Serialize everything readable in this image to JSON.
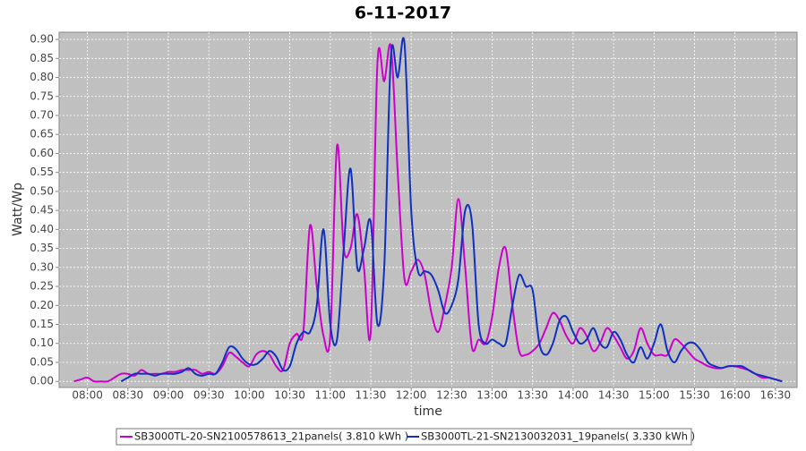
{
  "chart_data": {
    "type": "line",
    "title": "6-11-2017",
    "x_label": "time",
    "y_label": "Watt/Wp",
    "x": [
      "07:50",
      "07:55",
      "08:00",
      "08:05",
      "08:10",
      "08:15",
      "08:20",
      "08:25",
      "08:30",
      "08:35",
      "08:40",
      "08:45",
      "08:50",
      "08:55",
      "09:00",
      "09:05",
      "09:10",
      "09:15",
      "09:20",
      "09:25",
      "09:30",
      "09:35",
      "09:40",
      "09:45",
      "09:50",
      "09:55",
      "10:00",
      "10:05",
      "10:10",
      "10:15",
      "10:20",
      "10:25",
      "10:30",
      "10:35",
      "10:40",
      "10:45",
      "10:50",
      "10:55",
      "11:00",
      "11:05",
      "11:10",
      "11:15",
      "11:20",
      "11:25",
      "11:30",
      "11:35",
      "11:40",
      "11:45",
      "11:50",
      "11:55",
      "12:00",
      "12:05",
      "12:10",
      "12:15",
      "12:20",
      "12:25",
      "12:30",
      "12:35",
      "12:40",
      "12:45",
      "12:50",
      "12:55",
      "13:00",
      "13:05",
      "13:10",
      "13:15",
      "13:20",
      "13:25",
      "13:30",
      "13:35",
      "13:40",
      "13:45",
      "13:50",
      "13:55",
      "14:00",
      "14:05",
      "14:10",
      "14:15",
      "14:20",
      "14:25",
      "14:30",
      "14:35",
      "14:40",
      "14:45",
      "14:50",
      "14:55",
      "15:00",
      "15:05",
      "15:10",
      "15:15",
      "15:20",
      "15:25",
      "15:30",
      "15:35",
      "15:40",
      "15:45",
      "15:50",
      "15:55",
      "16:00",
      "16:05",
      "16:10",
      "16:15",
      "16:20",
      "16:25",
      "16:30",
      "16:35"
    ],
    "series": [
      {
        "name": "SB3000TL-20-SN2100578613_21panels( 3.810 kWh )",
        "color": "#cc00cc",
        "values": [
          0,
          0.005,
          0.01,
          0,
          0,
          0,
          0.01,
          0.02,
          0.02,
          0.015,
          0.03,
          0.02,
          0.02,
          0.02,
          0.025,
          0.025,
          0.03,
          0.03,
          0.03,
          0.02,
          0.025,
          0.02,
          0.04,
          0.075,
          0.065,
          0.05,
          0.04,
          0.07,
          0.08,
          0.07,
          0.04,
          0.03,
          0.1,
          0.125,
          0.13,
          0.41,
          0.25,
          0.12,
          0.12,
          0.62,
          0.35,
          0.35,
          0.44,
          0.3,
          0.13,
          0.84,
          0.79,
          0.88,
          0.55,
          0.27,
          0.29,
          0.32,
          0.28,
          0.18,
          0.13,
          0.2,
          0.3,
          0.48,
          0.3,
          0.09,
          0.11,
          0.1,
          0.17,
          0.3,
          0.35,
          0.2,
          0.08,
          0.07,
          0.08,
          0.1,
          0.14,
          0.18,
          0.16,
          0.12,
          0.1,
          0.14,
          0.12,
          0.08,
          0.1,
          0.14,
          0.12,
          0.09,
          0.06,
          0.08,
          0.14,
          0.1,
          0.07,
          0.07,
          0.07,
          0.11,
          0.1,
          0.08,
          0.06,
          0.05,
          0.04,
          0.035,
          0.035,
          0.04,
          0.04,
          0.035,
          0.03,
          0.02,
          0.01,
          0.01,
          0.005,
          0
        ]
      },
      {
        "name": "SB3000TL-21-SN2130032031_19panels( 3.330 kWh )",
        "color": "#1030c0",
        "values": [
          null,
          null,
          null,
          null,
          null,
          null,
          null,
          0,
          0.01,
          0.02,
          0.02,
          0.02,
          0.015,
          0.02,
          0.02,
          0.02,
          0.025,
          0.035,
          0.02,
          0.015,
          0.02,
          0.02,
          0.05,
          0.09,
          0.085,
          0.06,
          0.045,
          0.045,
          0.06,
          0.08,
          0.065,
          0.03,
          0.04,
          0.1,
          0.13,
          0.13,
          0.2,
          0.4,
          0.15,
          0.11,
          0.35,
          0.56,
          0.3,
          0.35,
          0.42,
          0.15,
          0.3,
          0.86,
          0.8,
          0.89,
          0.45,
          0.29,
          0.29,
          0.28,
          0.24,
          0.18,
          0.2,
          0.27,
          0.45,
          0.42,
          0.15,
          0.1,
          0.11,
          0.1,
          0.1,
          0.2,
          0.28,
          0.25,
          0.24,
          0.1,
          0.07,
          0.1,
          0.16,
          0.17,
          0.13,
          0.1,
          0.11,
          0.14,
          0.1,
          0.09,
          0.13,
          0.11,
          0.07,
          0.05,
          0.09,
          0.06,
          0.1,
          0.15,
          0.08,
          0.05,
          0.08,
          0.1,
          0.1,
          0.08,
          0.05,
          0.04,
          0.035,
          0.04,
          0.04,
          0.04,
          0.03,
          0.02,
          0.015,
          0.01,
          0.005,
          0
        ]
      }
    ],
    "xlim": [
      "07:39",
      "16:46"
    ],
    "xticks": [
      "08:00",
      "08:30",
      "09:00",
      "09:30",
      "10:00",
      "10:30",
      "11:00",
      "11:30",
      "12:00",
      "12:30",
      "13:00",
      "13:30",
      "14:00",
      "14:30",
      "15:00",
      "15:30",
      "16:00",
      "16:30"
    ],
    "ylim": [
      -0.016,
      0.919
    ],
    "yticks": [
      {
        "value": 0,
        "label": "0.00"
      },
      0.05,
      {
        "value": 0.1,
        "label": "0.10"
      },
      0.15,
      {
        "value": 0.2,
        "label": "0.20"
      },
      0.25,
      {
        "value": 0.3,
        "label": "0.30"
      },
      0.35,
      {
        "value": 0.4,
        "label": "0.40"
      },
      0.45,
      {
        "value": 0.5,
        "label": "0.50"
      },
      0.55,
      {
        "value": 0.6,
        "label": "0.60"
      },
      0.65,
      {
        "value": 0.7,
        "label": "0.70"
      },
      0.75,
      {
        "value": 0.8,
        "label": "0.80"
      },
      0.85,
      {
        "value": 0.9,
        "label": "0.90"
      }
    ],
    "grid": true
  }
}
